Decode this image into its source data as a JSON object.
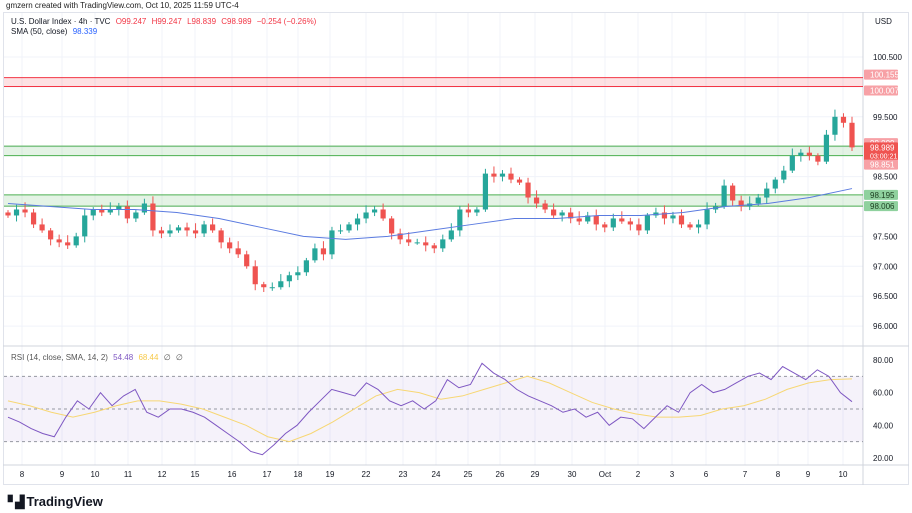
{
  "credit": "gmzern created with TradingView.com, Oct 10, 2025 11:59 UTC-4",
  "legend": {
    "symbol": "U.S. Dollar Index · 4h · TVC",
    "open": "O99.247",
    "high": "H99.247",
    "low": "L98.839",
    "close": "C98.989",
    "change": "−0.254 (−0.26%)",
    "sma_label": "SMA (50, close)",
    "sma_value": "98.339"
  },
  "rsi_legend": {
    "label": "RSI (14, close, SMA, 14, 2)",
    "rsi_value": "54.48",
    "sma_value": "68.44",
    "extra1": "∅",
    "extra2": "∅"
  },
  "currency": "USD",
  "logo": {
    "mark": "TV",
    "text": "TradingView"
  },
  "colors": {
    "up": "#26a69a",
    "down": "#ef5350",
    "sma": "#5b7be0",
    "rsi": "#7e57c2",
    "rsi_sma": "#f7d774",
    "zone_green": "#4caf50",
    "zone_red": "#f23645"
  },
  "chart_data": [
    {
      "type": "candlestick",
      "title": "U.S. Dollar Index · 4h · TVC",
      "ylim": [
        95.8,
        100.85
      ],
      "y_ticks": [
        "100.500",
        "99.500",
        "98.500",
        "97.500",
        "97.000",
        "96.500",
        "96.000"
      ],
      "x_ticks": [
        "8",
        "9",
        "10",
        "11",
        "12",
        "15",
        "16",
        "17",
        "18",
        "19",
        "22",
        "23",
        "24",
        "25",
        "26",
        "29",
        "30",
        "Oct",
        "2",
        "3",
        "6",
        "7",
        "8",
        "9",
        "10"
      ],
      "closes": [
        97.85,
        97.95,
        97.9,
        97.7,
        97.6,
        97.45,
        97.4,
        97.35,
        97.5,
        97.85,
        97.95,
        97.9,
        97.95,
        98.0,
        97.8,
        97.9,
        98.05,
        97.6,
        97.55,
        97.6,
        97.65,
        97.6,
        97.55,
        97.7,
        97.6,
        97.4,
        97.3,
        97.2,
        97.0,
        96.7,
        96.65,
        96.65,
        96.75,
        96.85,
        96.9,
        97.1,
        97.3,
        97.2,
        97.6,
        97.6,
        97.7,
        97.8,
        97.9,
        97.95,
        97.8,
        97.55,
        97.45,
        97.4,
        97.4,
        97.35,
        97.3,
        97.45,
        97.6,
        97.95,
        97.9,
        97.95,
        98.55,
        98.5,
        98.55,
        98.45,
        98.4,
        98.15,
        98.05,
        97.95,
        97.85,
        97.9,
        97.8,
        97.75,
        97.85,
        97.7,
        97.65,
        97.8,
        97.75,
        97.7,
        97.6,
        97.85,
        97.9,
        97.8,
        97.85,
        97.7,
        97.65,
        97.7,
        97.95,
        98.0,
        98.35,
        98.1,
        98.0,
        98.05,
        98.15,
        98.3,
        98.45,
        98.6,
        98.85,
        98.9,
        98.85,
        98.75,
        99.2,
        99.5,
        99.4,
        98.989
      ],
      "sma": [
        98.05,
        98.0,
        97.95,
        97.95,
        97.9,
        97.8,
        97.65,
        97.5,
        97.45,
        97.5,
        97.6,
        97.7,
        97.8,
        97.8,
        97.85,
        97.85,
        97.9,
        98.0,
        98.05,
        98.15,
        98.3
      ],
      "zones": [
        {
          "color": "red",
          "from": 100.007,
          "to": 100.155
        },
        {
          "color": "green",
          "from": 98.851,
          "to": 99.009
        },
        {
          "color": "green",
          "from": 98.006,
          "to": 98.195
        }
      ],
      "price_tags": [
        {
          "text": "100.155",
          "value": 100.155,
          "color": "#f7a1a6",
          "light": true
        },
        {
          "text": "100.007",
          "value": 100.007,
          "color": "#f7a1a6",
          "light": true
        },
        {
          "text": "99.009",
          "value": 99.009,
          "color": "#f7a1a6",
          "light": true
        },
        {
          "text": "98.989",
          "sub": "03:00:21",
          "value": 98.989,
          "color": "#ef5350"
        },
        {
          "text": "98.851",
          "value": 98.851,
          "color": "#f7a1a6",
          "light": true
        },
        {
          "text": "98.195",
          "value": 98.195,
          "color": "#8fd19e",
          "dark": true
        },
        {
          "text": "98.006",
          "value": 98.006,
          "color": "#8fd19e",
          "dark": true
        }
      ]
    },
    {
      "type": "line",
      "title": "RSI (14, close, SMA, 14, 2)",
      "ylim": [
        15,
        85
      ],
      "y_ticks": [
        "80.00",
        "60.00",
        "40.00",
        "20.00"
      ],
      "levels": [
        70,
        50,
        30
      ],
      "rsi": [
        45,
        42,
        38,
        35,
        33,
        45,
        55,
        50,
        60,
        52,
        58,
        62,
        48,
        45,
        50,
        50,
        48,
        45,
        40,
        35,
        30,
        24,
        22,
        28,
        35,
        40,
        48,
        55,
        62,
        60,
        58,
        66,
        62,
        55,
        52,
        55,
        50,
        55,
        68,
        63,
        65,
        78,
        72,
        68,
        62,
        58,
        55,
        52,
        48,
        50,
        45,
        48,
        40,
        45,
        44,
        38,
        45,
        52,
        48,
        60,
        65,
        60,
        62,
        66,
        70,
        72,
        68,
        76,
        72,
        68,
        74,
        70,
        60,
        54.48
      ],
      "rsi_sma": [
        55,
        52,
        48,
        45,
        48,
        52,
        55,
        55,
        53,
        50,
        45,
        40,
        33,
        30,
        35,
        42,
        50,
        58,
        62,
        60,
        56,
        58,
        62,
        66,
        70,
        66,
        60,
        54,
        50,
        47,
        45,
        45,
        46,
        50,
        52,
        56,
        62,
        66,
        68,
        68.44
      ]
    }
  ]
}
